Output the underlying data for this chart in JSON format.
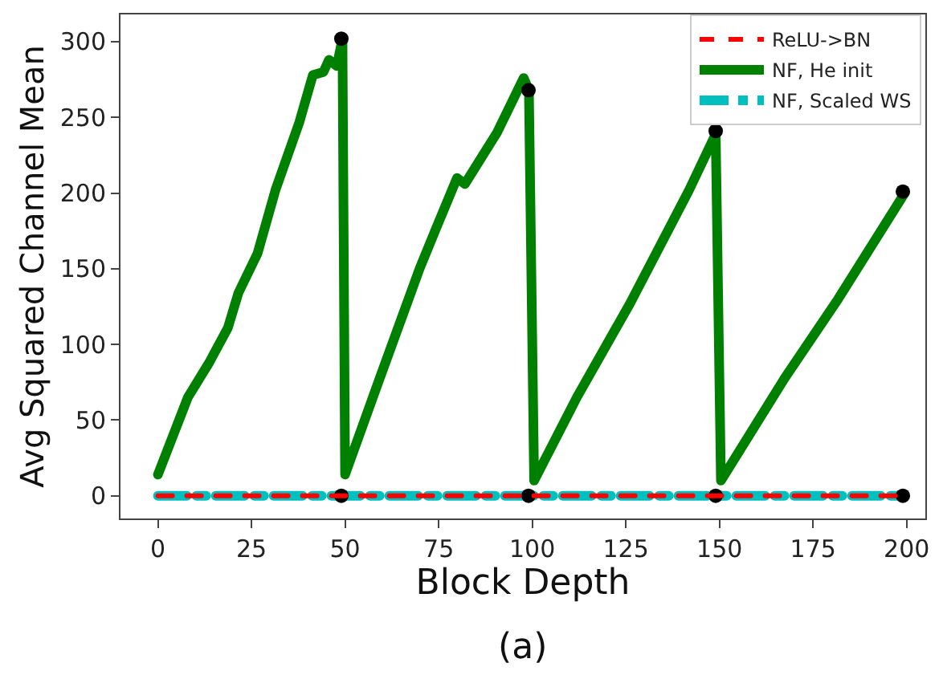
{
  "chart_data": {
    "type": "line",
    "xlabel": "Block Depth",
    "ylabel": "Avg Squared Channel Mean",
    "annotations": [
      "(a)"
    ],
    "xlim": [
      -10,
      205
    ],
    "ylim": [
      -15,
      318
    ],
    "xticks": [
      0,
      25,
      50,
      75,
      100,
      125,
      150,
      175,
      200
    ],
    "yticks": [
      0,
      50,
      100,
      150,
      200,
      250,
      300
    ],
    "legend": "top right",
    "marker": "none",
    "series": [
      {
        "name": "ReLU->BN",
        "color": "#ff0000",
        "line_style": "dashed",
        "x": [
          0,
          199
        ],
        "values": [
          0,
          0
        ]
      },
      {
        "name": "NF, He init",
        "color": "#008000",
        "line_style": "solid",
        "x": [
          0,
          8,
          13.7,
          18.7,
          21.5,
          26.6,
          31.4,
          37.8,
          41.4,
          44.2,
          45.7,
          47.8,
          49.3,
          50,
          59.3,
          69.9,
          74.2,
          79.9,
          82,
          90.6,
          97.7,
          99.1,
          100.5,
          111.9,
          126.1,
          141.9,
          149,
          150.4,
          167.5,
          181.7,
          199.5
        ],
        "values": [
          14,
          65,
          88,
          111,
          134,
          160,
          202,
          247,
          278,
          280,
          288,
          284,
          302,
          14,
          78,
          150,
          176,
          210,
          206,
          240,
          276,
          268,
          10,
          65,
          127,
          202,
          239,
          10,
          78,
          130,
          200
        ]
      },
      {
        "name": "NF, Scaled WS",
        "color": "#00bfbf",
        "line_style": "dashdot",
        "x": [
          0,
          199
        ],
        "values": [
          0,
          0
        ]
      },
      {
        "type": "scatter",
        "color": "#000000",
        "marker": "circle",
        "x": [
          49,
          99,
          149,
          199,
          49,
          99,
          149,
          199
        ],
        "values": [
          302,
          268,
          241,
          201,
          0,
          0,
          0,
          0
        ]
      }
    ]
  }
}
